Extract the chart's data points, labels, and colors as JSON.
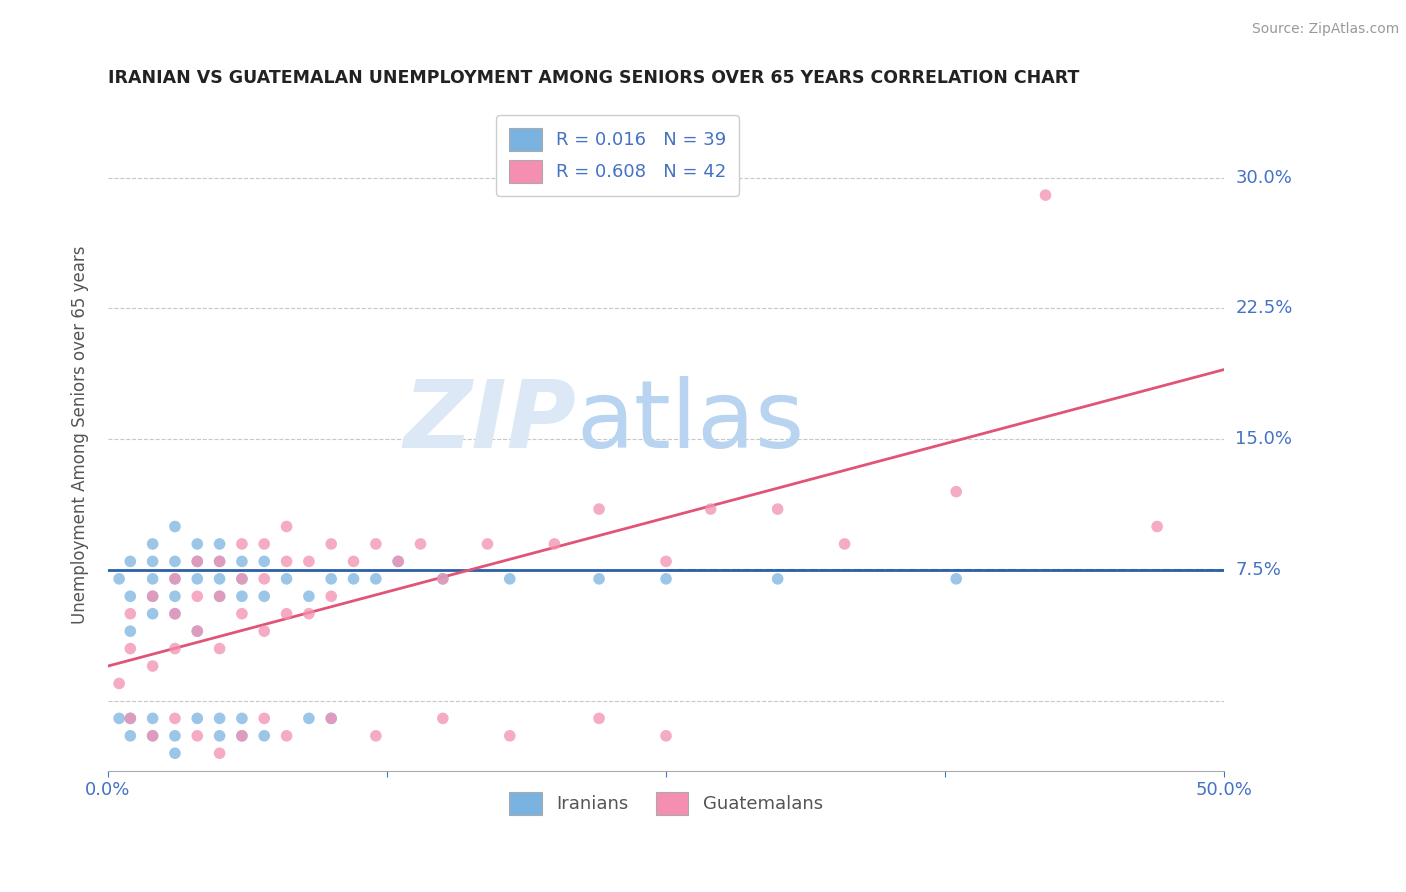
{
  "title": "IRANIAN VS GUATEMALAN UNEMPLOYMENT AMONG SENIORS OVER 65 YEARS CORRELATION CHART",
  "source": "Source: ZipAtlas.com",
  "ylabel": "Unemployment Among Seniors over 65 years",
  "xlim": [
    0.0,
    0.5
  ],
  "ylim": [
    -0.04,
    0.345
  ],
  "yticks": [
    0.0,
    0.075,
    0.15,
    0.225,
    0.3
  ],
  "ytick_labels": [
    "",
    "7.5%",
    "15.0%",
    "22.5%",
    "30.0%"
  ],
  "xticks": [
    0.0,
    0.125,
    0.25,
    0.375,
    0.5
  ],
  "xtick_labels": [
    "0.0%",
    "",
    "",
    "",
    "50.0%"
  ],
  "iranians_R": 0.016,
  "iranians_N": 39,
  "guatemalans_R": 0.608,
  "guatemalans_N": 42,
  "blue_color": "#7ab3e0",
  "pink_color": "#f48fb1",
  "blue_line_color": "#2b5fa8",
  "pink_line_color": "#e05575",
  "axis_label_color": "#4472c4",
  "title_color": "#222222",
  "watermark_color": "#dce8f5",
  "legend_label_iranians": "Iranians",
  "legend_label_guatemalans": "Guatemalans",
  "iranians_x": [
    0.005,
    0.01,
    0.01,
    0.01,
    0.02,
    0.02,
    0.02,
    0.02,
    0.02,
    0.03,
    0.03,
    0.03,
    0.03,
    0.03,
    0.04,
    0.04,
    0.04,
    0.04,
    0.05,
    0.05,
    0.05,
    0.05,
    0.06,
    0.06,
    0.06,
    0.07,
    0.07,
    0.08,
    0.09,
    0.1,
    0.11,
    0.12,
    0.13,
    0.15,
    0.18,
    0.22,
    0.25,
    0.3,
    0.38
  ],
  "iranians_y": [
    0.07,
    0.04,
    0.06,
    0.08,
    0.05,
    0.06,
    0.07,
    0.08,
    0.09,
    0.05,
    0.06,
    0.07,
    0.08,
    0.1,
    0.04,
    0.07,
    0.08,
    0.09,
    0.06,
    0.07,
    0.08,
    0.09,
    0.06,
    0.07,
    0.08,
    0.06,
    0.08,
    0.07,
    0.06,
    0.07,
    0.07,
    0.07,
    0.08,
    0.07,
    0.07,
    0.07,
    0.07,
    0.07,
    0.07
  ],
  "guatemalans_x": [
    0.005,
    0.01,
    0.01,
    0.02,
    0.02,
    0.03,
    0.03,
    0.03,
    0.04,
    0.04,
    0.04,
    0.05,
    0.05,
    0.05,
    0.06,
    0.06,
    0.06,
    0.07,
    0.07,
    0.07,
    0.08,
    0.08,
    0.08,
    0.09,
    0.09,
    0.1,
    0.1,
    0.11,
    0.12,
    0.13,
    0.14,
    0.15,
    0.17,
    0.2,
    0.22,
    0.25,
    0.27,
    0.3,
    0.33,
    0.38,
    0.42,
    0.47
  ],
  "guatemalans_y": [
    0.01,
    0.03,
    0.05,
    0.02,
    0.06,
    0.03,
    0.05,
    0.07,
    0.04,
    0.06,
    0.08,
    0.03,
    0.06,
    0.08,
    0.05,
    0.07,
    0.09,
    0.04,
    0.07,
    0.09,
    0.05,
    0.08,
    0.1,
    0.05,
    0.08,
    0.06,
    0.09,
    0.08,
    0.09,
    0.08,
    0.09,
    0.07,
    0.09,
    0.09,
    0.11,
    0.08,
    0.11,
    0.11,
    0.09,
    0.12,
    0.29,
    0.1
  ],
  "iranians_below": [
    0.005,
    0.01,
    0.01,
    0.02,
    0.02,
    0.03,
    0.03,
    0.04,
    0.05,
    0.05,
    0.06,
    0.06,
    0.07,
    0.09,
    0.1
  ],
  "iranians_below_y": [
    -0.01,
    -0.02,
    -0.01,
    -0.02,
    -0.01,
    -0.02,
    -0.03,
    -0.01,
    -0.02,
    -0.01,
    -0.02,
    -0.01,
    -0.02,
    -0.01,
    -0.01
  ],
  "guatemalans_below": [
    0.01,
    0.02,
    0.03,
    0.04,
    0.05,
    0.06,
    0.07,
    0.08,
    0.1,
    0.12,
    0.15,
    0.18,
    0.22,
    0.25
  ],
  "guatemalans_below_y": [
    -0.01,
    -0.02,
    -0.01,
    -0.02,
    -0.03,
    -0.02,
    -0.01,
    -0.02,
    -0.01,
    -0.02,
    -0.01,
    -0.02,
    -0.01,
    -0.02
  ]
}
